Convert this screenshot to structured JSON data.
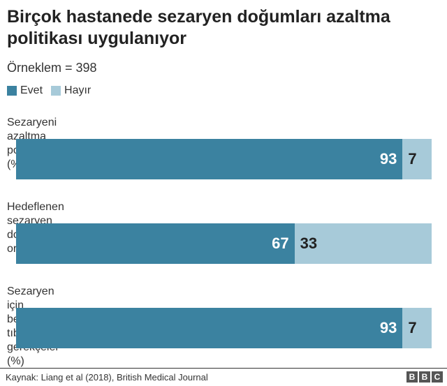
{
  "colors": {
    "evet": "#3b82a0",
    "hayir": "#a7cad9",
    "label_on_dark": "#ffffff",
    "label_on_light": "#222222"
  },
  "chart_data": {
    "type": "bar",
    "orientation": "horizontal-stacked-percent",
    "title": "Birçok hastanede sezaryen doğumları azaltma politikası uygulanıyor",
    "subtitle": "Örneklem = 398",
    "legend": {
      "placement": "top-left",
      "entries": [
        "Evet",
        "Hayır"
      ]
    },
    "categories": [
      "Sezaryeni azaltma politikası (%)",
      "Hedeflenen sezaryen doğum oranı (%)",
      "Sezaryen için belirtilen tıbbi gerekçeler (%)"
    ],
    "series": [
      {
        "name": "Evet",
        "values": [
          93,
          67,
          93
        ]
      },
      {
        "name": "Hayır",
        "values": [
          7,
          33,
          7
        ]
      }
    ],
    "xlim": [
      0,
      100
    ],
    "grid": false
  },
  "footer": {
    "source": "Kaynak: Liang et al (2018), British Medical Journal",
    "logo_letters": [
      "B",
      "B",
      "C"
    ]
  }
}
